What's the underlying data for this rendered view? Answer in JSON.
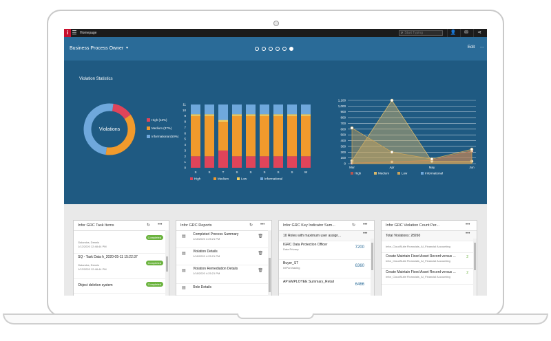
{
  "topbar": {
    "app_title": "Homepage",
    "search_placeholder": "Start Typing",
    "icons": [
      "user-icon",
      "mail-icon",
      "share-icon"
    ]
  },
  "header": {
    "title": "Business Process Owner",
    "edit_label": "Edit",
    "more_label": "...",
    "pages": 6,
    "active_page": 6
  },
  "stats": {
    "title": "Violation Statistics",
    "donut_label": "Violations",
    "donut_legend": [
      {
        "label": "High (13%)",
        "color": "#e0445a"
      },
      {
        "label": "Medium (37%)",
        "color": "#f19a2c"
      },
      {
        "label": "Informational (50%)",
        "color": "#6fa8dc"
      }
    ]
  },
  "chart_data": [
    {
      "type": "pie",
      "categories": [
        "High",
        "Medium",
        "Informational"
      ],
      "values": [
        13,
        37,
        50
      ],
      "title": "Violations"
    },
    {
      "type": "bar",
      "categories": [
        "S",
        "S",
        "T",
        "S",
        "S",
        "S",
        "S",
        "S",
        "W"
      ],
      "series": [
        {
          "name": "High",
          "values": [
            2,
            2,
            3,
            2,
            2,
            2,
            2,
            2,
            2
          ]
        },
        {
          "name": "Medium",
          "values": [
            7,
            7,
            5,
            7,
            7,
            7,
            7,
            7,
            7
          ]
        },
        {
          "name": "Low",
          "values": [
            0.3,
            0.3,
            0.3,
            0.3,
            0.3,
            0.3,
            0.3,
            0.3,
            0.3
          ]
        },
        {
          "name": "Informational",
          "values": [
            1.7,
            1.7,
            2.7,
            1.7,
            1.7,
            1.7,
            1.7,
            1.7,
            1.7
          ]
        }
      ],
      "yticks": [
        "0",
        "1",
        "2",
        "3",
        "4",
        "5",
        "6",
        "7",
        "8",
        "9",
        "10",
        "11"
      ],
      "ylim": [
        0,
        11
      ],
      "colors": {
        "High": "#e0445a",
        "Medium": "#f19a2c",
        "Low": "#f5d060",
        "Informational": "#6fa8dc"
      }
    },
    {
      "type": "area",
      "categories": [
        "Mar",
        "Apr",
        "May",
        "Jun"
      ],
      "series": [
        {
          "name": "High",
          "values": [
            10,
            30,
            60,
            220
          ]
        },
        {
          "name": "Medium",
          "values": [
            50,
            1100,
            40,
            40
          ]
        },
        {
          "name": "Low",
          "values": [
            620,
            200,
            80,
            250
          ]
        },
        {
          "name": "Informational",
          "values": [
            0,
            0,
            0,
            0
          ]
        }
      ],
      "yticks": [
        "0",
        "100",
        "200",
        "300",
        "400",
        "500",
        "600",
        "700",
        "800",
        "900",
        "1,000",
        "1,100"
      ],
      "ylim": [
        0,
        1100
      ],
      "colors": {
        "High": "#b85450",
        "Medium": "#d9b86a",
        "Low": "#c9a45a",
        "Informational": "#6fa8dc"
      }
    }
  ],
  "cards": [
    {
      "title": "Infor GRC Task Items",
      "items": [
        {
          "title": "",
          "sub": "Galandra, Dennis",
          "sub2": "1/12/2020 12:48:44 PM",
          "badge": "Completed"
        },
        {
          "title": "SQ - Task Data h_2020-05-11 15:22:37",
          "sub": "Galandra, Dennis",
          "sub2": "1/12/2020 12:48:44 PM",
          "badge": "Completed"
        },
        {
          "title": "Object deletion system",
          "sub": "",
          "sub2": "",
          "badge": "Completed"
        }
      ]
    },
    {
      "title": "Infor GRC Reports",
      "items": [
        {
          "title": "Completed Process Summary",
          "sub": "1/18/2020 4:25:21 PM"
        },
        {
          "title": "Violation Details",
          "sub": "1/18/2020 4:25:21 PM"
        },
        {
          "title": "Violation Remediation Details",
          "sub": "1/18/2020 4:25:21 PM"
        },
        {
          "title": "Role Details",
          "sub": ""
        }
      ]
    },
    {
      "title": "Infor GRC Key Indicator Sum...",
      "subheader": "10 Roles with maximum user assign...",
      "items": [
        {
          "title": "IGRC Data Protection Officer",
          "sub": "Data Privacy",
          "value": "7200"
        },
        {
          "title": "Buyer_ST",
          "sub": "IntPurchasing",
          "value": "6360"
        },
        {
          "title": "AP EMPLOYEE Summary_Retail",
          "sub": "",
          "value": "6466"
        }
      ]
    },
    {
      "title": "Infor GRC Violation Count Per...",
      "subheader": "Total Violations: 28260",
      "items": [
        {
          "title": "Infor_CloudSuite Financials_AI_Financial Accounting",
          "sub": "",
          "value": ""
        },
        {
          "title": "Create Maintain Fixed Asset Record versus ...",
          "sub": "Infor_CloudSuite Financials_AI_Financial Accounting",
          "value": "2"
        },
        {
          "title": "Create Maintain Fixed Asset Record versus ...",
          "sub": "Infor_CloudSuite Financials_AI_Financial Accounting",
          "value": "2"
        }
      ]
    }
  ]
}
